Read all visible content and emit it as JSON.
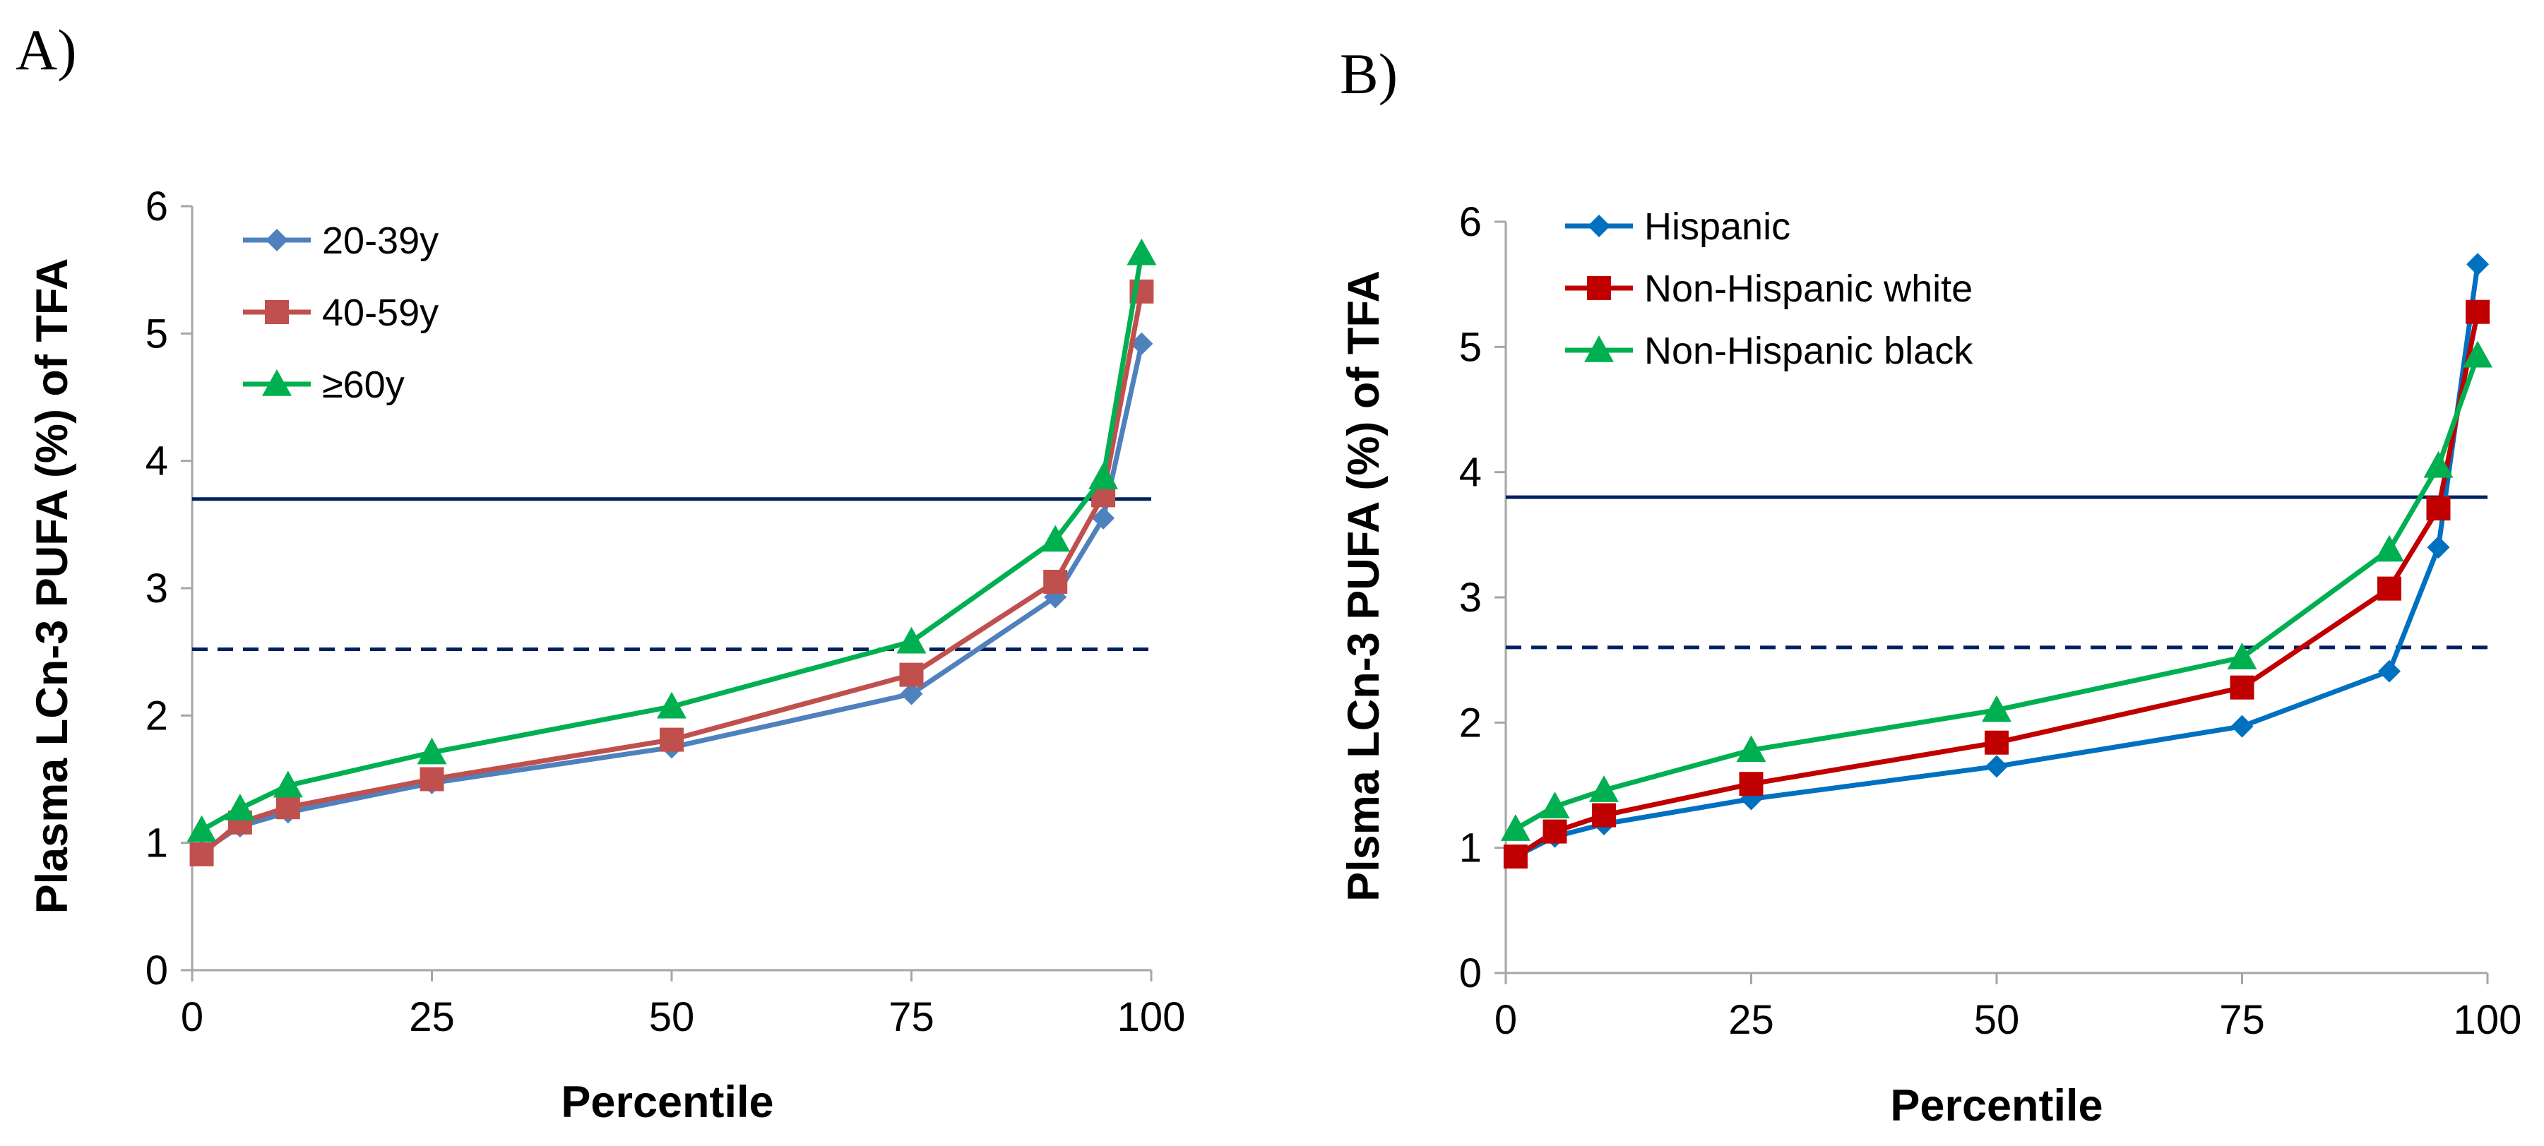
{
  "chart_data": [
    {
      "panel_label": "A)",
      "type": "line",
      "xlabel": "Percentile",
      "ylabel": "Plasma LCn-3 PUFA (%) of TFA",
      "xlim": [
        0,
        100
      ],
      "ylim": [
        0,
        6
      ],
      "x_ticks": [
        "0",
        "25",
        "50",
        "75",
        "100"
      ],
      "y_ticks": [
        "0",
        "1",
        "2",
        "3",
        "4",
        "5",
        "6"
      ],
      "legend_position": "top-left",
      "reference_lines": [
        {
          "style": "solid",
          "y": 3.7
        },
        {
          "style": "dashed",
          "y": 2.52
        }
      ],
      "series": [
        {
          "name": "20-39y",
          "marker": "diamond",
          "color": "#4F81BD",
          "x": [
            1,
            5,
            10,
            25,
            50,
            75,
            90,
            95,
            99
          ],
          "values": [
            0.93,
            1.13,
            1.24,
            1.47,
            1.75,
            2.17,
            2.93,
            3.55,
            4.92
          ]
        },
        {
          "name": "40-59y",
          "marker": "square",
          "color": "#C0504D",
          "x": [
            1,
            5,
            10,
            25,
            50,
            75,
            90,
            95,
            99
          ],
          "values": [
            0.91,
            1.16,
            1.28,
            1.5,
            1.81,
            2.32,
            3.05,
            3.73,
            5.33
          ]
        },
        {
          "name": "≥60y",
          "marker": "triangle",
          "color": "#00B050",
          "x": [
            1,
            5,
            10,
            25,
            50,
            75,
            90,
            95,
            99
          ],
          "values": [
            1.1,
            1.27,
            1.45,
            1.71,
            2.07,
            2.58,
            3.38,
            3.87,
            5.63
          ]
        }
      ]
    },
    {
      "panel_label": "B)",
      "type": "line",
      "xlabel": "Percentile",
      "ylabel": "Plsma LCn-3 PUFA (%) of TFA",
      "xlim": [
        0,
        100
      ],
      "ylim": [
        0,
        6
      ],
      "x_ticks": [
        "0",
        "25",
        "50",
        "75",
        "100"
      ],
      "y_ticks": [
        "0",
        "1",
        "2",
        "3",
        "4",
        "5",
        "6"
      ],
      "legend_position": "top-left",
      "reference_lines": [
        {
          "style": "solid",
          "y": 3.8
        },
        {
          "style": "dashed",
          "y": 2.6
        }
      ],
      "series": [
        {
          "name": "Hispanic",
          "marker": "diamond",
          "color": "#0070C0",
          "x": [
            1,
            5,
            10,
            25,
            50,
            75,
            90,
            95,
            99
          ],
          "values": [
            0.93,
            1.09,
            1.19,
            1.39,
            1.65,
            1.97,
            2.41,
            3.4,
            5.66
          ]
        },
        {
          "name": "Non-Hispanic white",
          "marker": "square",
          "color": "#C00000",
          "x": [
            1,
            5,
            10,
            25,
            50,
            75,
            90,
            95,
            99
          ],
          "values": [
            0.93,
            1.13,
            1.26,
            1.51,
            1.84,
            2.28,
            3.07,
            3.71,
            5.28
          ]
        },
        {
          "name": "Non-Hispanic black",
          "marker": "triangle",
          "color": "#00B050",
          "x": [
            1,
            5,
            10,
            25,
            50,
            75,
            90,
            95,
            99
          ],
          "values": [
            1.15,
            1.33,
            1.46,
            1.78,
            2.1,
            2.52,
            3.38,
            4.05,
            4.93
          ]
        }
      ]
    }
  ],
  "colors": {
    "axis": "#A6A6A6",
    "reference_line": "#002060"
  }
}
